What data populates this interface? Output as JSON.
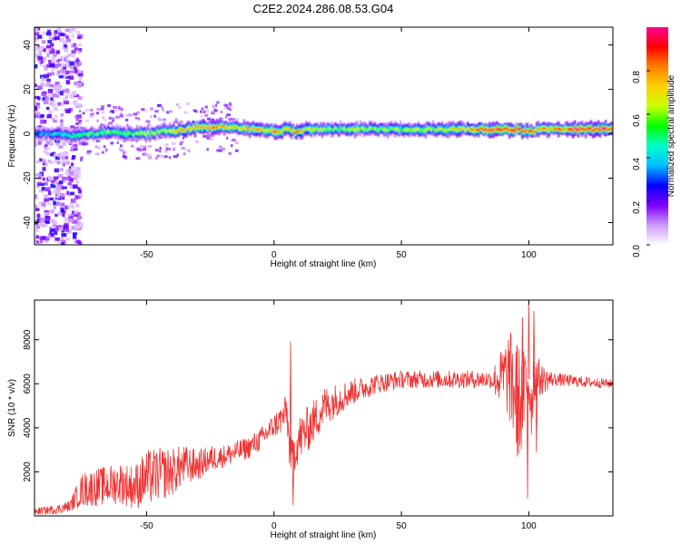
{
  "title": "C2E2.2024.286.08.53.G04",
  "chart_data": [
    {
      "type": "heatmap",
      "xlabel": "Height of straight line (km)",
      "ylabel": "Frequency (Hz)",
      "xlim": [
        -94,
        133
      ],
      "ylim": [
        -50,
        48
      ],
      "xticks": [
        -50,
        0,
        50,
        100
      ],
      "yticks": [
        -40,
        -20,
        0,
        20,
        40
      ],
      "colorbar": {
        "label": "Normalized spectral amplitude",
        "range": [
          0,
          1
        ],
        "ticks": [
          "0.0",
          "0.2",
          "0.4",
          "0.6",
          "0.8"
        ],
        "colors": [
          "#ffffff",
          "#cc99ff",
          "#7f00ff",
          "#0000ff",
          "#00bfff",
          "#00ffcc",
          "#00ff00",
          "#c8ff00",
          "#ffd000",
          "#ff8000",
          "#ff0000",
          "#ff0090"
        ]
      },
      "ridge": {
        "x": [
          -94,
          -85,
          -80,
          -75,
          -70,
          -65,
          -60,
          -55,
          -50,
          -45,
          -40,
          -35,
          -30,
          -25,
          -20,
          -15,
          -10,
          -5,
          0,
          5,
          8,
          12,
          20,
          30,
          40,
          50,
          60,
          70,
          80,
          90,
          95,
          100,
          105,
          110,
          120,
          133
        ],
        "freq": [
          0,
          0,
          -1,
          0,
          0,
          1,
          0,
          0,
          0,
          1,
          1,
          2,
          3,
          3,
          3,
          3,
          2,
          2,
          1,
          2,
          1,
          2,
          2,
          2,
          2,
          2,
          2,
          2,
          2,
          2,
          2,
          1,
          2,
          2,
          2,
          2
        ],
        "amplitude": [
          0.35,
          0.45,
          0.5,
          0.55,
          0.55,
          0.6,
          0.55,
          0.6,
          0.65,
          0.65,
          0.7,
          0.75,
          0.85,
          0.85,
          0.8,
          0.7,
          0.85,
          0.7,
          0.85,
          0.75,
          0.85,
          0.7,
          0.6,
          0.62,
          0.62,
          0.62,
          0.65,
          0.7,
          0.85,
          0.95,
          1.0,
          0.9,
          0.75,
          0.85,
          0.95,
          0.95
        ]
      },
      "noise_region": [
        -94,
        -76
      ]
    },
    {
      "type": "line",
      "xlabel": "Height of straight line (km)",
      "ylabel": "SNR (10 * v/v)",
      "xlim": [
        -94,
        133
      ],
      "ylim": [
        0,
        9800
      ],
      "xticks": [
        -50,
        0,
        50,
        100
      ],
      "yticks": [
        2000,
        4000,
        6000,
        8000
      ],
      "color": "#ee3333",
      "envelope": {
        "x": [
          -94,
          -85,
          -80,
          -78,
          -75,
          -70,
          -65,
          -60,
          -55,
          -50,
          -45,
          -40,
          -35,
          -30,
          -25,
          -20,
          -15,
          -10,
          -5,
          0,
          3,
          5,
          6,
          7,
          8,
          10,
          15,
          20,
          25,
          30,
          35,
          40,
          50,
          60,
          70,
          80,
          88,
          92,
          95,
          97,
          99,
          100,
          101,
          102,
          103,
          105,
          110,
          120,
          133
        ],
        "y": [
          200,
          300,
          450,
          800,
          1200,
          1300,
          1400,
          1500,
          1300,
          1700,
          1900,
          2000,
          2300,
          2300,
          2600,
          2700,
          2900,
          3100,
          3500,
          4100,
          4400,
          4800,
          3200,
          2500,
          3000,
          3500,
          4200,
          5000,
          5300,
          5600,
          5800,
          6000,
          6200,
          6200,
          6200,
          6200,
          6200,
          6400,
          5500,
          5000,
          6000,
          6200,
          5000,
          6300,
          6300,
          6200,
          6200,
          6100,
          6000
        ]
      },
      "noise": {
        "x": [
          -94,
          -80,
          -75,
          -65,
          -55,
          -50,
          -40,
          -30,
          -20,
          -10,
          0,
          5,
          10,
          20,
          30,
          40,
          50,
          85,
          90,
          95,
          105,
          110,
          133
        ],
        "y": [
          150,
          250,
          800,
          900,
          1000,
          1300,
          1100,
          700,
          500,
          500,
          550,
          800,
          1100,
          900,
          600,
          450,
          400,
          400,
          1500,
          2800,
          700,
          300,
          200
        ]
      },
      "spikes": [
        {
          "x": 6.5,
          "y": 7900
        },
        {
          "x": 7.5,
          "y": 500
        },
        {
          "x": 95.5,
          "y": 2700
        },
        {
          "x": 97.5,
          "y": 9000
        },
        {
          "x": 99.5,
          "y": 800
        },
        {
          "x": 100,
          "y": 9800
        },
        {
          "x": 102,
          "y": 9300
        },
        {
          "x": 103,
          "y": 2900
        }
      ]
    }
  ]
}
